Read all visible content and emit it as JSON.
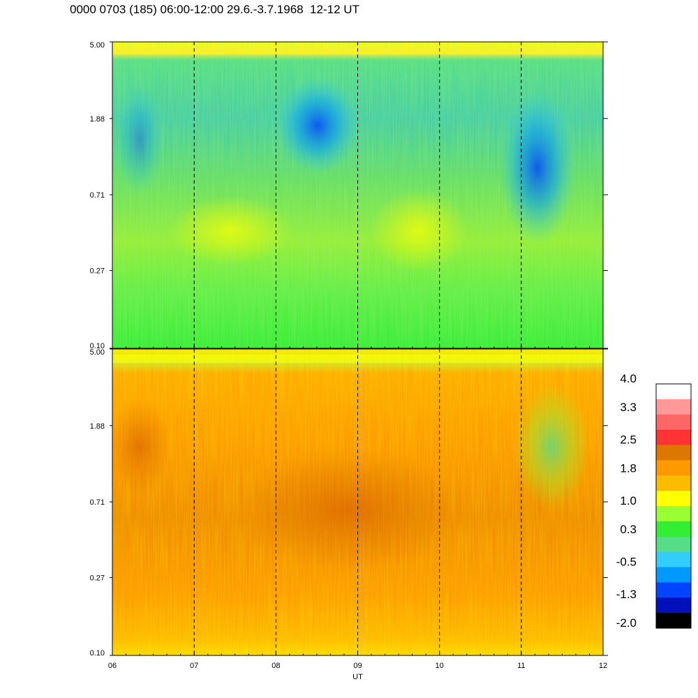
{
  "title": "0000 0703 (185) 06:00-12:00 29.6.-3.7.1968  12-12 UT",
  "chart_data": [
    {
      "type": "heatmap",
      "panel": "upper",
      "y_ticks": [
        "0.10",
        "0.27",
        "0.71",
        "1.88",
        "5.00"
      ],
      "y_tick_values": [
        0.1,
        0.27,
        0.71,
        1.88,
        5.0
      ],
      "y_scale": "log",
      "ylim": [
        0.1,
        5.0
      ],
      "x_ticks": [
        "06",
        "07",
        "08",
        "09",
        "10",
        "11",
        "12"
      ],
      "x_tick_values": [
        6,
        7,
        8,
        9,
        10,
        11,
        12
      ],
      "xlim": [
        6,
        12
      ],
      "x_gridlines": [
        7,
        8,
        9,
        10,
        11
      ],
      "grid_style": "dashed vertical",
      "dominant_levels": [
        0.3,
        1.0
      ],
      "features": "high-frequency band near 5.00 bright yellow; bluish (−0.5 to −1.3) patches between 0.71 and 2.5 around 08-09 and 10.7-11.3 UT; green to yellow-green below 0.27"
    },
    {
      "type": "heatmap",
      "panel": "lower",
      "y_ticks": [
        "0.10",
        "0.27",
        "0.71",
        "1.88",
        "5.00"
      ],
      "y_tick_values": [
        0.1,
        0.27,
        0.71,
        1.88,
        5.0
      ],
      "y_scale": "log",
      "ylim": [
        0.1,
        5.0
      ],
      "x_ticks": [
        "06",
        "07",
        "08",
        "09",
        "10",
        "11",
        "12"
      ],
      "x_tick_values": [
        6,
        7,
        8,
        9,
        10,
        11,
        12
      ],
      "xlim": [
        6,
        12
      ],
      "xlabel": "UT",
      "x_gridlines": [
        7,
        8,
        9,
        10,
        11
      ],
      "grid_style": "dashed vertical",
      "dominant_levels": [
        1.4,
        1.8,
        2.2
      ],
      "features": "mostly orange; darker orange 0.3-1.5 around 08-10 UT; greenish area 1.0-2.5 near 11-11.5 UT; yellow band near top"
    }
  ],
  "colorbar": {
    "labels": [
      "4.0",
      "3.3",
      "2.5",
      "1.8",
      "1.0",
      "0.3",
      "-0.5",
      "-1.3",
      "-2.0"
    ],
    "label_values": [
      4.0,
      3.3,
      2.5,
      1.8,
      1.0,
      0.3,
      -0.5,
      -1.3,
      -2.0
    ],
    "range": [
      -2.0,
      4.0
    ],
    "colors_top_to_bottom": [
      "#ffffff",
      "#ff9999",
      "#ff6666",
      "#ff3333",
      "#dd7700",
      "#ff9900",
      "#ffbb00",
      "#ffff00",
      "#99ff33",
      "#33ee33",
      "#55dd88",
      "#33ccff",
      "#0099ff",
      "#0044ff",
      "#0011bb",
      "#000000"
    ]
  }
}
